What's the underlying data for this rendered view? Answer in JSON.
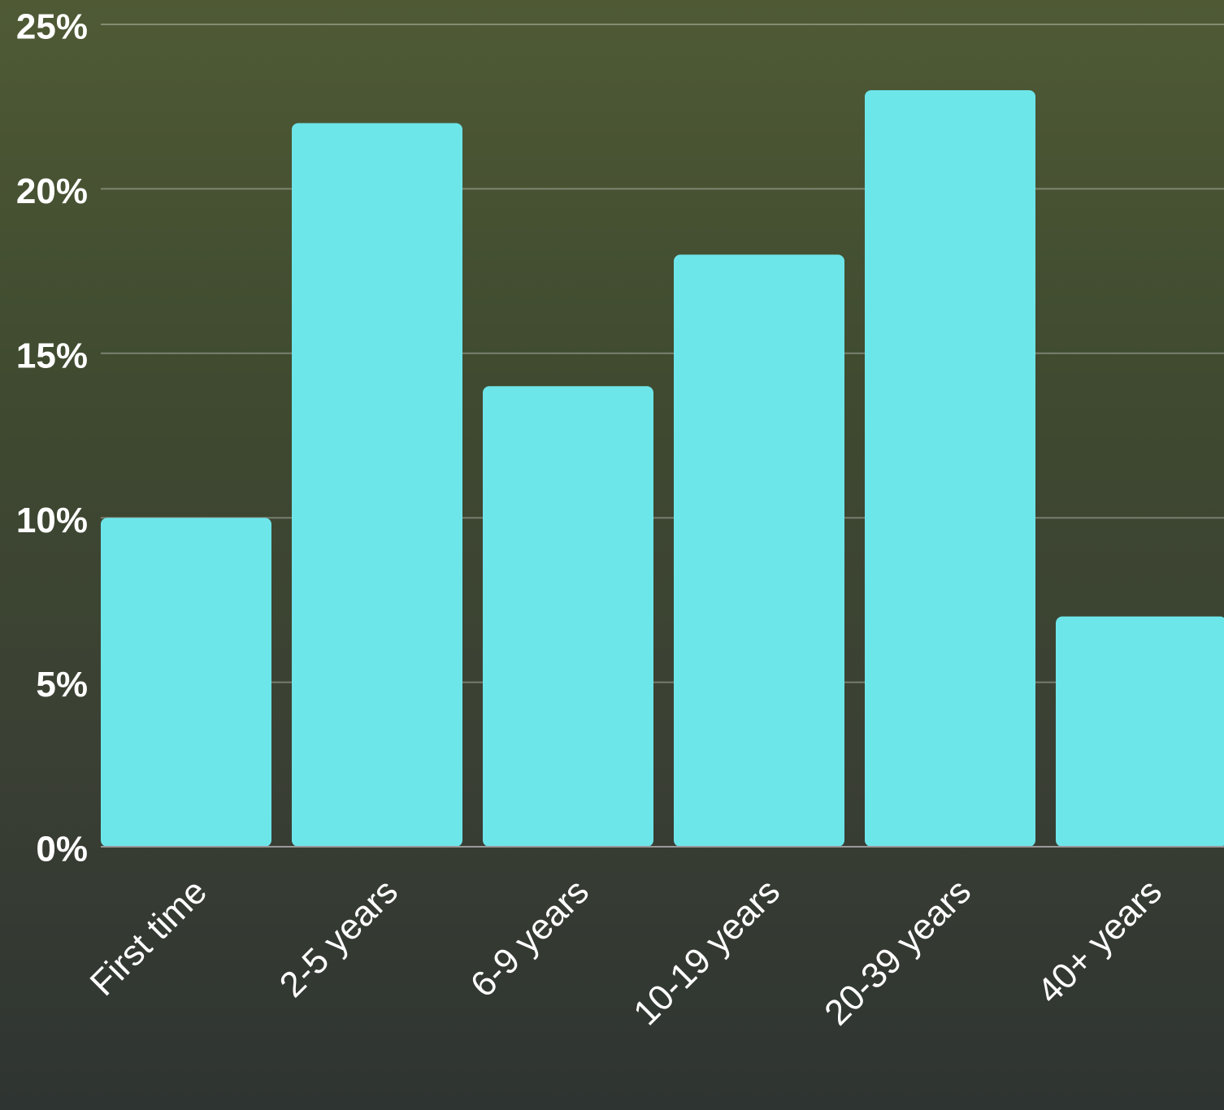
{
  "chart_data": {
    "type": "bar",
    "categories": [
      "First time",
      "2-5 years",
      "6-9 years",
      "10-19 years",
      "20-39 years",
      "40+ years"
    ],
    "values": [
      10,
      22,
      14,
      18,
      23,
      7
    ],
    "color": "#6de6ea",
    "ylim": [
      0,
      25
    ],
    "yticks": [
      {
        "value": 0,
        "label": "0%"
      },
      {
        "value": 5,
        "label": "5%"
      },
      {
        "value": 10,
        "label": "10%"
      },
      {
        "value": 15,
        "label": "15%"
      },
      {
        "value": 20,
        "label": "20%"
      },
      {
        "value": 25,
        "label": "25%"
      }
    ],
    "grid": true
  }
}
